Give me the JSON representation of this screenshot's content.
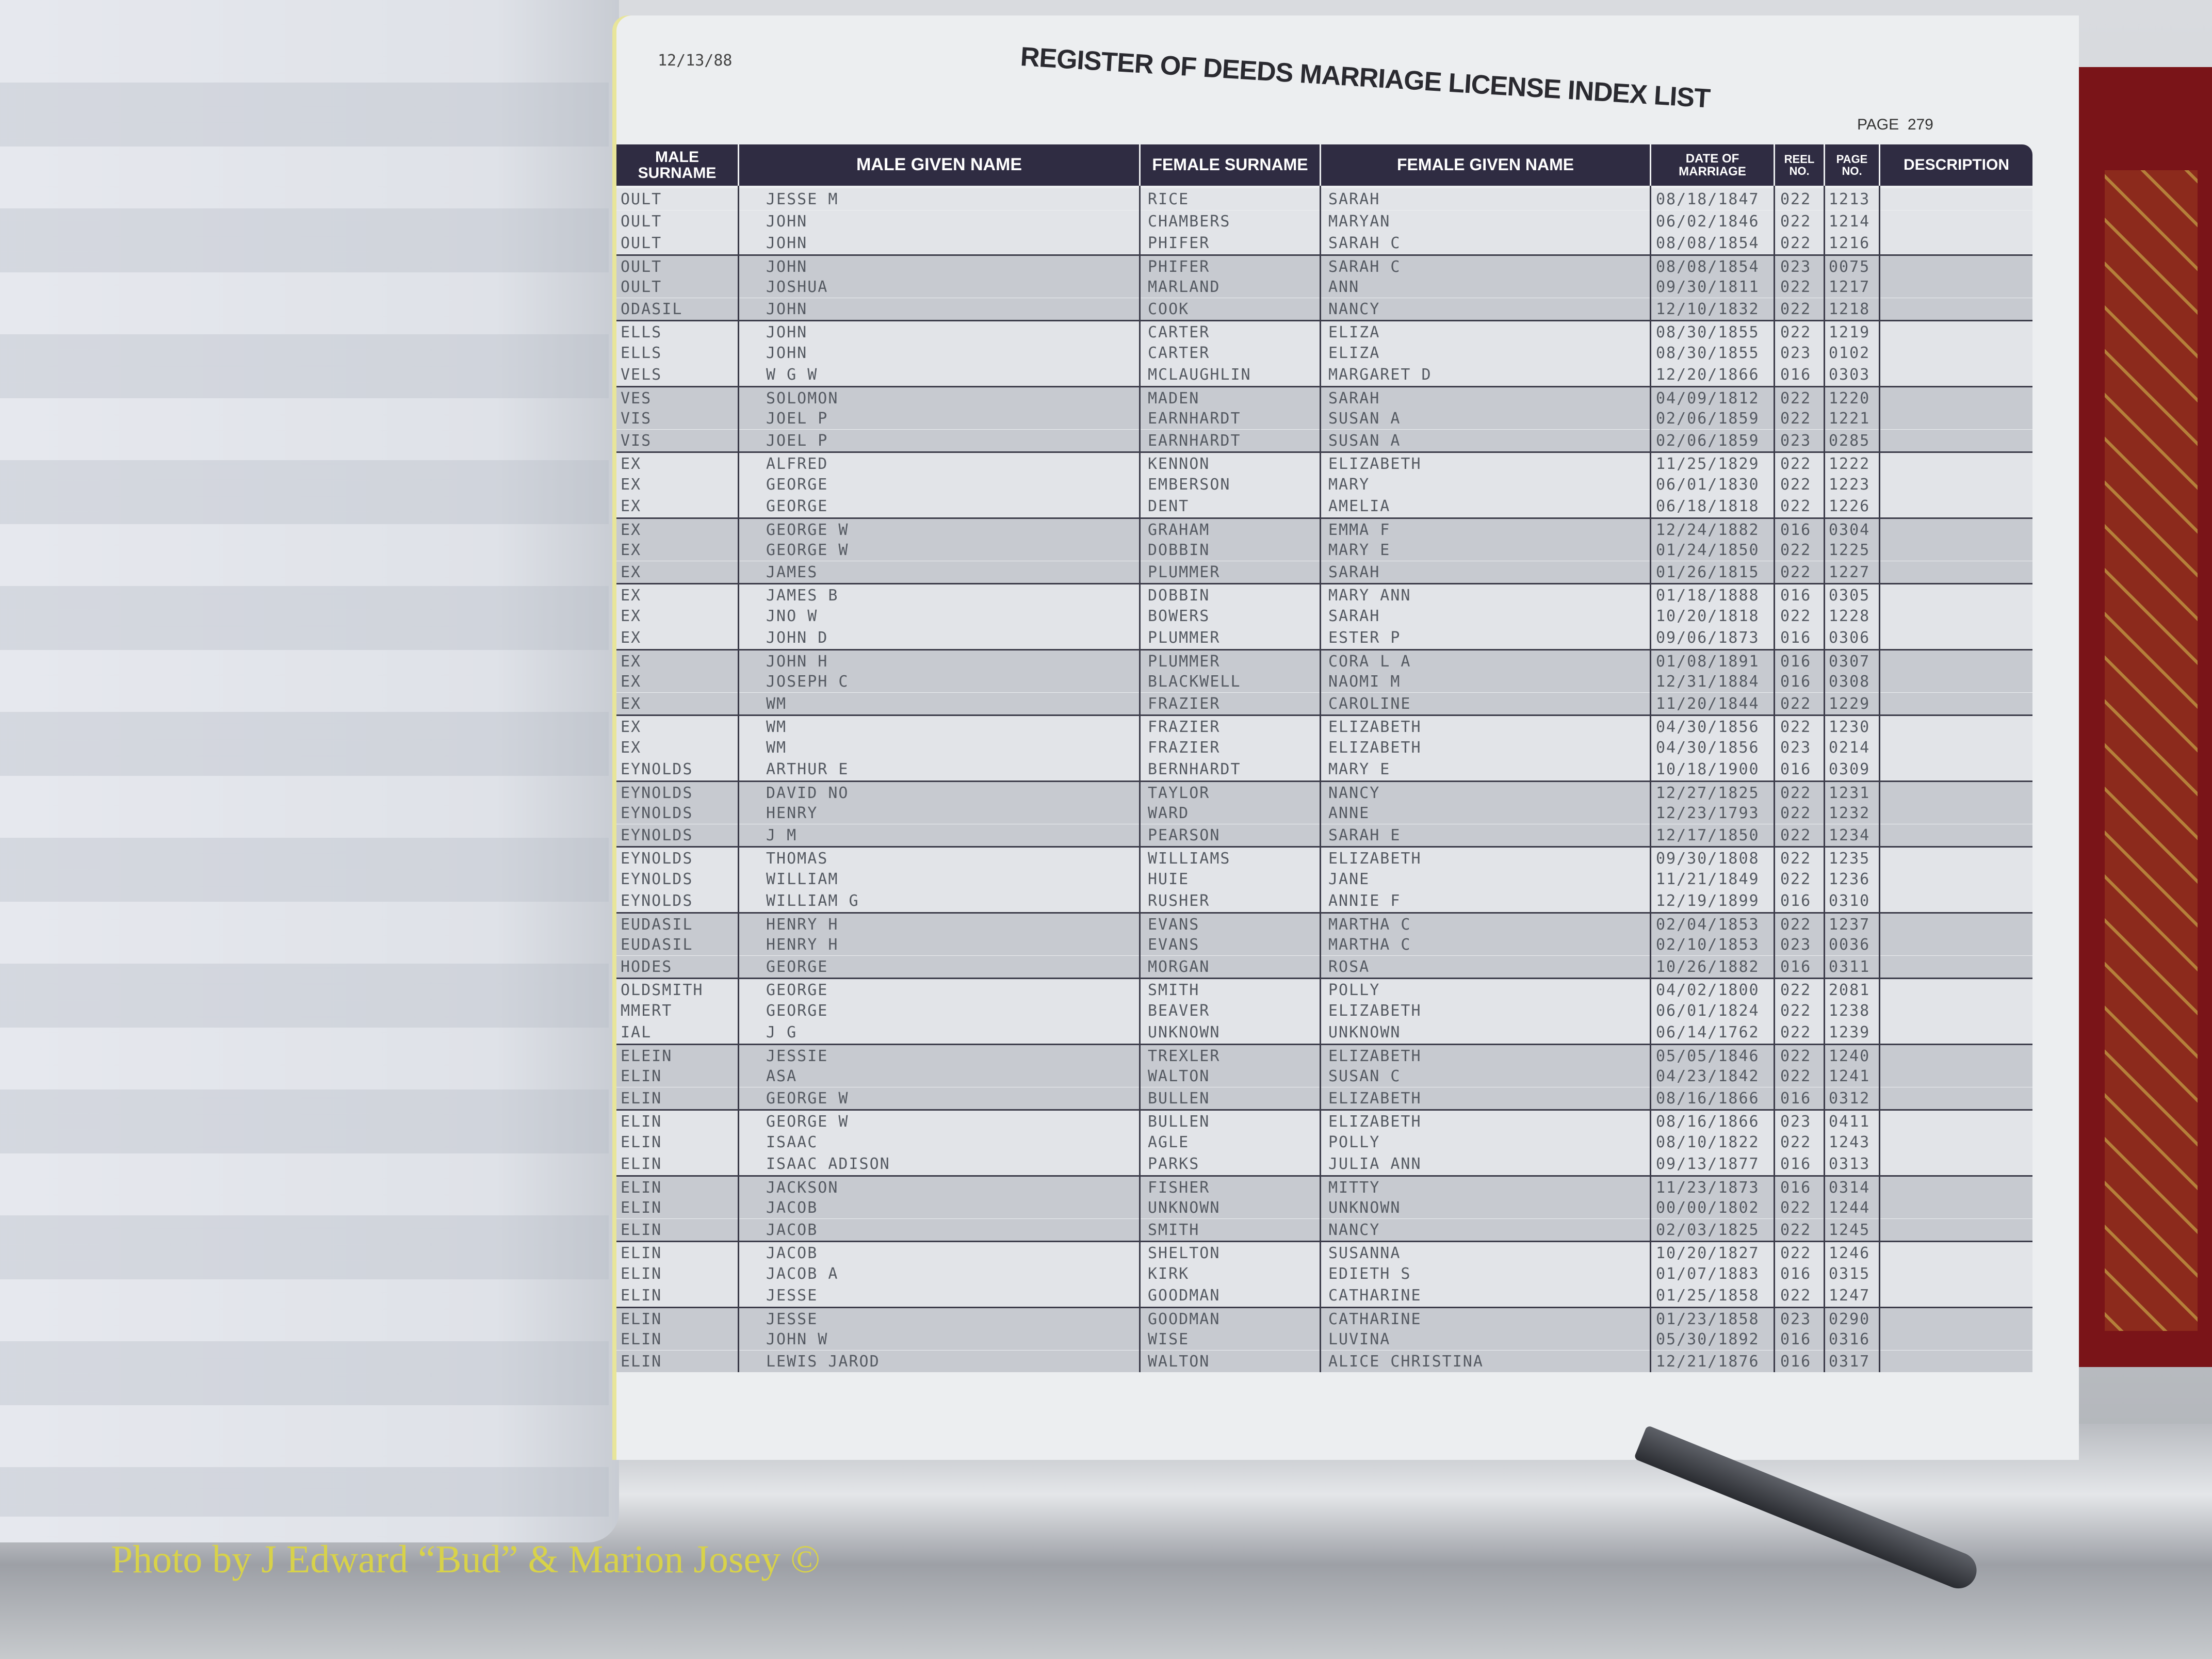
{
  "document": {
    "print_date": "12/13/88",
    "title": "REGISTER OF DEEDS MARRIAGE LICENSE INDEX LIST",
    "page_label": "PAGE",
    "page_number": "279",
    "columns": {
      "male_surname": "MALE SURNAME",
      "male_given": "MALE GIVEN NAME",
      "female_surname": "FEMALE SURNAME",
      "female_given": "FEMALE GIVEN NAME",
      "date": "DATE OF MARRIAGE",
      "reel": "REEL NO.",
      "page": "PAGE NO.",
      "description": "DESCRIPTION"
    },
    "male_surname_fragments": [
      "OULT",
      "OULT",
      "OULT",
      "OULT",
      "OULT",
      "ODASIL",
      "ELLS",
      "ELLS",
      "VELS",
      "VES",
      "VIS",
      "VIS",
      "EX",
      "EX",
      "EX",
      "EX",
      "EX",
      "EX",
      "EX",
      "EX",
      "EX",
      "EX",
      "EX",
      "EX",
      "EX",
      "EX",
      "EYNOLDS",
      "EYNOLDS",
      "EYNOLDS",
      "EYNOLDS",
      "EYNOLDS",
      "EYNOLDS",
      "EYNOLDS",
      "EUDASIL",
      "EUDASIL",
      "HODES",
      "OLDSMITH",
      "MMERT",
      "IAL",
      "ELEIN",
      "ELIN",
      "ELIN",
      "ELIN",
      "ELIN",
      "ELIN",
      "ELIN",
      "ELIN",
      "ELIN",
      "ELIN",
      "ELIN",
      "ELIN",
      "ELIN",
      "ELIN",
      "ELIN"
    ],
    "male_given": [
      "JESSE M",
      "JOHN",
      "JOHN",
      "JOHN",
      "JOSHUA",
      "JOHN",
      "JOHN",
      "JOHN",
      "W G W",
      "SOLOMON",
      "JOEL P",
      "JOEL P",
      "ALFRED",
      "GEORGE",
      "GEORGE",
      "GEORGE W",
      "GEORGE W",
      "JAMES",
      "JAMES B",
      "JNO W",
      "JOHN D",
      "JOHN H",
      "JOSEPH C",
      "WM",
      "WM",
      "WM",
      "ARTHUR E",
      "DAVID NO",
      "HENRY",
      "J M",
      "THOMAS",
      "WILLIAM",
      "WILLIAM G",
      "HENRY H",
      "HENRY H",
      "GEORGE",
      "GEORGE",
      "GEORGE",
      "J G",
      "JESSIE",
      "ASA",
      "GEORGE W",
      "GEORGE W",
      "ISAAC",
      "ISAAC ADISON",
      "JACKSON",
      "JACOB",
      "JACOB",
      "JACOB",
      "JACOB A",
      "JESSE",
      "JESSE",
      "JOHN W",
      "LEWIS JAROD"
    ],
    "female_surname": [
      "RICE",
      "CHAMBERS",
      "PHIFER",
      "PHIFER",
      "MARLAND",
      "COOK",
      "CARTER",
      "CARTER",
      "MCLAUGHLIN",
      "MADEN",
      "EARNHARDT",
      "EARNHARDT",
      "KENNON",
      "EMBERSON",
      "DENT",
      "GRAHAM",
      "DOBBIN",
      "PLUMMER",
      "DOBBIN",
      "BOWERS",
      "PLUMMER",
      "PLUMMER",
      "BLACKWELL",
      "FRAZIER",
      "FRAZIER",
      "FRAZIER",
      "BERNHARDT",
      "TAYLOR",
      "WARD",
      "PEARSON",
      "WILLIAMS",
      "HUIE",
      "RUSHER",
      "EVANS",
      "EVANS",
      "MORGAN",
      "SMITH",
      "BEAVER",
      "UNKNOWN",
      "TREXLER",
      "WALTON",
      "BULLEN",
      "BULLEN",
      "AGLE",
      "PARKS",
      "FISHER",
      "UNKNOWN",
      "SMITH",
      "SHELTON",
      "KIRK",
      "GOODMAN",
      "GOODMAN",
      "WISE",
      "WALTON"
    ],
    "female_given": [
      "SARAH",
      "MARYAN",
      "SARAH C",
      "SARAH C",
      "ANN",
      "NANCY",
      "ELIZA",
      "ELIZA",
      "MARGARET D",
      "SARAH",
      "SUSAN A",
      "SUSAN A",
      "ELIZABETH",
      "MARY",
      "AMELIA",
      "EMMA F",
      "MARY E",
      "SARAH",
      "MARY ANN",
      "SARAH",
      "ESTER P",
      "CORA L A",
      "NAOMI M",
      "CAROLINE",
      "ELIZABETH",
      "ELIZABETH",
      "MARY E",
      "NANCY",
      "ANNE",
      "SARAH E",
      "ELIZABETH",
      "JANE",
      "ANNIE F",
      "MARTHA C",
      "MARTHA C",
      "ROSA",
      "POLLY",
      "ELIZABETH",
      "UNKNOWN",
      "ELIZABETH",
      "SUSAN C",
      "ELIZABETH",
      "ELIZABETH",
      "POLLY",
      "JULIA ANN",
      "MITTY",
      "UNKNOWN",
      "NANCY",
      "SUSANNA",
      "EDIETH S",
      "CATHARINE",
      "CATHARINE",
      "LUVINA",
      "ALICE CHRISTINA"
    ],
    "dates": [
      "08/18/1847",
      "06/02/1846",
      "08/08/1854",
      "08/08/1854",
      "09/30/1811",
      "12/10/1832",
      "08/30/1855",
      "08/30/1855",
      "12/20/1866",
      "04/09/1812",
      "02/06/1859",
      "02/06/1859",
      "11/25/1829",
      "06/01/1830",
      "06/18/1818",
      "12/24/1882",
      "01/24/1850",
      "01/26/1815",
      "01/18/1888",
      "10/20/1818",
      "09/06/1873",
      "01/08/1891",
      "12/31/1884",
      "11/20/1844",
      "04/30/1856",
      "04/30/1856",
      "10/18/1900",
      "12/27/1825",
      "12/23/1793",
      "12/17/1850",
      "09/30/1808",
      "11/21/1849",
      "12/19/1899",
      "02/04/1853",
      "02/10/1853",
      "10/26/1882",
      "04/02/1800",
      "06/01/1824",
      "06/14/1762",
      "05/05/1846",
      "04/23/1842",
      "08/16/1866",
      "08/16/1866",
      "08/10/1822",
      "09/13/1877",
      "11/23/1873",
      "00/00/1802",
      "02/03/1825",
      "10/20/1827",
      "01/07/1883",
      "01/25/1858",
      "01/23/1858",
      "05/30/1892",
      "12/21/1876"
    ],
    "reels": [
      "022",
      "022",
      "022",
      "023",
      "022",
      "022",
      "022",
      "023",
      "016",
      "022",
      "022",
      "023",
      "022",
      "022",
      "022",
      "016",
      "022",
      "022",
      "016",
      "022",
      "016",
      "016",
      "016",
      "022",
      "022",
      "023",
      "016",
      "022",
      "022",
      "022",
      "022",
      "022",
      "016",
      "022",
      "023",
      "016",
      "022",
      "022",
      "022",
      "022",
      "022",
      "016",
      "023",
      "022",
      "016",
      "016",
      "022",
      "022",
      "022",
      "016",
      "022",
      "023",
      "016",
      "016"
    ],
    "pages": [
      "1213",
      "1214",
      "1216",
      "0075",
      "1217",
      "1218",
      "1219",
      "0102",
      "0303",
      "1220",
      "1221",
      "0285",
      "1222",
      "1223",
      "1226",
      "0304",
      "1225",
      "1227",
      "0305",
      "1228",
      "0306",
      "0307",
      "0308",
      "1229",
      "1230",
      "0214",
      "0309",
      "1231",
      "1232",
      "1234",
      "1235",
      "1236",
      "0310",
      "1237",
      "0036",
      "0311",
      "2081",
      "1238",
      "1239",
      "1240",
      "1241",
      "0312",
      "0411",
      "1243",
      "0313",
      "0314",
      "1244",
      "1245",
      "1246",
      "0315",
      "1247",
      "0290",
      "0316",
      "0317"
    ]
  },
  "watermark": "Photo by J Edward “Bud” & Marion Josey ©"
}
